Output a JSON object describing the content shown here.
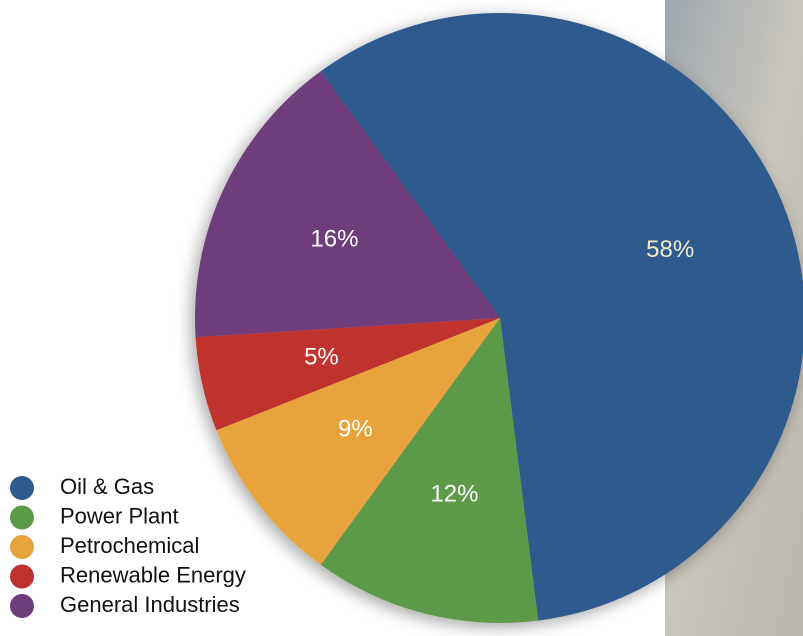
{
  "chart_data": {
    "type": "pie",
    "categories": [
      "Oil & Gas",
      "Power Plant",
      "Petrochemical",
      "Renewable Energy",
      "General Industries"
    ],
    "values": [
      58,
      12,
      9,
      5,
      16
    ],
    "value_labels": [
      "58%",
      "12%",
      "9%",
      "5%",
      "16%"
    ],
    "colors": [
      "#2e5a8e",
      "#5b9a48",
      "#e8a33d",
      "#c0302f",
      "#6f3c7c"
    ],
    "legend": "bottom-left"
  }
}
